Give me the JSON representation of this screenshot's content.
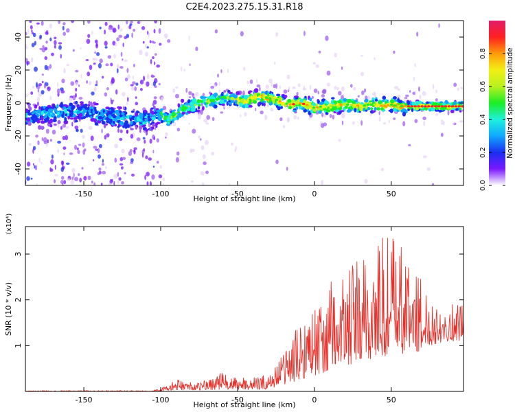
{
  "title": "C2E4.2023.275.15.31.R18",
  "chart_data": [
    {
      "type": "heatmap",
      "xlabel": "Height of straight line (km)",
      "ylabel": "Frequency (Hz)",
      "xlim": [
        -188,
        97
      ],
      "ylim": [
        -50,
        50
      ],
      "xticks": [
        -150,
        -100,
        -50,
        0,
        50
      ],
      "yticks": [
        -40,
        -20,
        0,
        20,
        40
      ],
      "ridge": {
        "x": [
          -188,
          -170,
          -150,
          -135,
          -120,
          -110,
          -100,
          -95,
          -90,
          -85,
          -80,
          -75,
          -70,
          -65,
          -60,
          -55,
          -50,
          -45,
          -40,
          -35,
          -30,
          -25,
          -20,
          -15,
          -10,
          -5,
          0,
          5,
          10,
          15,
          20,
          25,
          30,
          35,
          40,
          45,
          50,
          55,
          60,
          65,
          70,
          75,
          80,
          85,
          90,
          97
        ],
        "y": [
          -8,
          -6,
          -5,
          -8,
          -10,
          -10,
          -7,
          -10,
          -7,
          -3,
          -2,
          0,
          1,
          2,
          2,
          3,
          2,
          1,
          3,
          4,
          3,
          2,
          0,
          -1,
          0,
          -1,
          -3,
          -2,
          -2,
          -1,
          -1,
          -1,
          -2,
          -1,
          -1,
          -2,
          -1,
          -2,
          -2,
          -2,
          -2,
          -2,
          -2,
          -2,
          -2,
          -2
        ]
      },
      "colorbar": {
        "label": "Normalized spectral amplitude",
        "ticks": [
          "0.0",
          "0.2",
          "0.4",
          "0.6",
          "0.8"
        ],
        "range": [
          0,
          1
        ]
      }
    },
    {
      "type": "line",
      "xlabel": "Height of straight line (km)",
      "ylabel": "SNR (10 * v/v)",
      "scale_label": "(x10⁴)",
      "xlim": [
        -188,
        97
      ],
      "ylim": [
        0,
        3.6
      ],
      "xticks": [
        -150,
        -100,
        -50,
        0,
        50
      ],
      "yticks": [
        1,
        2,
        3
      ],
      "series": [
        {
          "color": "#e8302a",
          "envelope": {
            "x": [
              -188,
              -120,
              -105,
              -100,
              -95,
              -90,
              -85,
              -80,
              -75,
              -70,
              -65,
              -60,
              -55,
              -50,
              -45,
              -40,
              -35,
              -30,
              -25,
              -20,
              -15,
              -10,
              -5,
              0,
              5,
              10,
              15,
              20,
              25,
              30,
              35,
              40,
              45,
              50,
              55,
              60,
              65,
              70,
              75,
              80,
              85,
              90,
              97
            ],
            "y": [
              0.02,
              0.02,
              0.03,
              0.06,
              0.15,
              0.25,
              0.25,
              0.2,
              0.18,
              0.3,
              0.35,
              0.45,
              0.3,
              0.3,
              0.35,
              0.3,
              0.35,
              0.35,
              0.65,
              0.9,
              1.2,
              1.5,
              1.9,
              1.95,
              1.9,
              2.4,
              2.6,
              2.6,
              2.8,
              3.0,
              3.0,
              3.3,
              3.5,
              3.6,
              3.3,
              3.1,
              2.8,
              2.4,
              2.2,
              2.0,
              1.9,
              1.9,
              2.0
            ]
          },
          "floor": {
            "x": [
              -188,
              -120,
              -105,
              -100,
              -95,
              -90,
              -85,
              -80,
              -75,
              -70,
              -65,
              -60,
              -55,
              -50,
              -45,
              -40,
              -35,
              -30,
              -25,
              -20,
              -15,
              -10,
              -5,
              0,
              5,
              10,
              15,
              20,
              25,
              30,
              35,
              40,
              45,
              50,
              55,
              60,
              65,
              70,
              75,
              80,
              85,
              90,
              97
            ],
            "y": [
              0.0,
              0.0,
              0.0,
              0.01,
              0.02,
              0.03,
              0.03,
              0.03,
              0.03,
              0.03,
              0.04,
              0.04,
              0.04,
              0.04,
              0.04,
              0.04,
              0.04,
              0.05,
              0.1,
              0.15,
              0.2,
              0.25,
              0.3,
              0.35,
              0.4,
              0.45,
              0.5,
              0.55,
              0.6,
              0.6,
              0.65,
              0.7,
              0.75,
              0.8,
              0.8,
              0.8,
              0.85,
              0.9,
              1.0,
              1.05,
              1.1,
              1.1,
              1.1
            ]
          }
        }
      ]
    }
  ],
  "colors": {
    "line": "#e8302a",
    "cmap": [
      "#ffffff",
      "#e8d6f6",
      "#a060f0",
      "#7a18ff",
      "#1a2ff0",
      "#10a8ff",
      "#1ef0dc",
      "#1aee24",
      "#b8f020",
      "#f2f014",
      "#ff9a0a",
      "#ff2020",
      "#e01c6a"
    ]
  }
}
